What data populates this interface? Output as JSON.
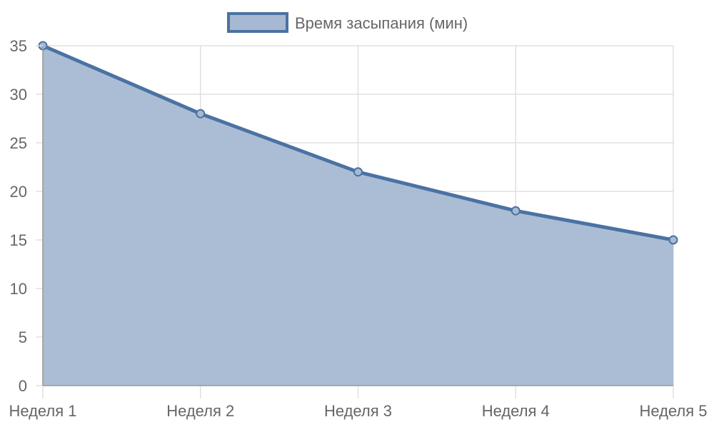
{
  "chart_data": {
    "type": "area",
    "categories": [
      "Неделя 1",
      "Неделя 2",
      "Неделя 3",
      "Неделя 4",
      "Неделя 5"
    ],
    "series": [
      {
        "name": "Время засыпания (мин)",
        "values": [
          35,
          28,
          22,
          18,
          15
        ]
      }
    ],
    "y_ticks": [
      0,
      5,
      10,
      15,
      20,
      25,
      30,
      35
    ],
    "ylim": [
      0,
      35
    ],
    "grid": true,
    "legend_position": "top-center",
    "colors": {
      "line": "#4a72a3",
      "fill": "#a7b9d2",
      "grid": "#e0e0e0",
      "axis": "#999999",
      "text": "#666666"
    }
  }
}
